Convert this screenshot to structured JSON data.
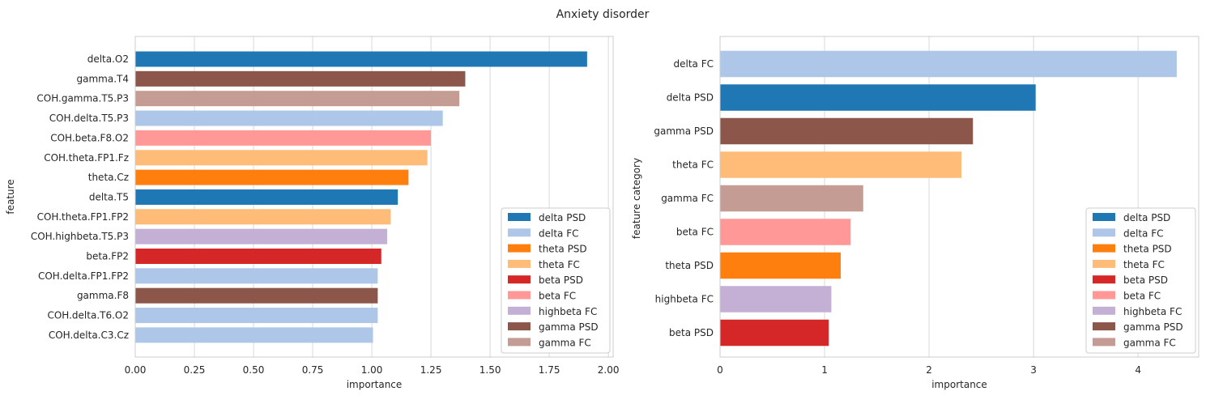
{
  "figure": {
    "title": "Anxiety disorder"
  },
  "chart_data": [
    {
      "type": "bar",
      "orientation": "horizontal",
      "xlabel": "importance",
      "ylabel": "feature",
      "xlim": [
        0,
        2.02
      ],
      "xticks": [
        0.0,
        0.25,
        0.5,
        0.75,
        1.0,
        1.25,
        1.5,
        1.75,
        2.0
      ],
      "xtick_labels": [
        "0.00",
        "0.25",
        "0.50",
        "0.75",
        "1.00",
        "1.25",
        "1.50",
        "1.75",
        "2.00"
      ],
      "grid": true,
      "legend_position": "lower-right",
      "bars": [
        {
          "label": "delta.O2",
          "value": 1.91,
          "category": "delta PSD"
        },
        {
          "label": "gamma.T4",
          "value": 1.395,
          "category": "gamma PSD"
        },
        {
          "label": "COH.gamma.T5.P3",
          "value": 1.37,
          "category": "gamma FC"
        },
        {
          "label": "COH.delta.T5.P3",
          "value": 1.3,
          "category": "delta FC"
        },
        {
          "label": "COH.beta.F8.O2",
          "value": 1.25,
          "category": "beta FC"
        },
        {
          "label": "COH.theta.FP1.Fz",
          "value": 1.235,
          "category": "theta FC"
        },
        {
          "label": "theta.Cz",
          "value": 1.155,
          "category": "theta PSD"
        },
        {
          "label": "delta.T5",
          "value": 1.11,
          "category": "delta PSD"
        },
        {
          "label": "COH.theta.FP1.FP2",
          "value": 1.08,
          "category": "theta FC"
        },
        {
          "label": "COH.highbeta.T5.P3",
          "value": 1.065,
          "category": "highbeta FC"
        },
        {
          "label": "beta.FP2",
          "value": 1.04,
          "category": "beta PSD"
        },
        {
          "label": "COH.delta.FP1.FP2",
          "value": 1.025,
          "category": "delta FC"
        },
        {
          "label": "gamma.F8",
          "value": 1.025,
          "category": "gamma PSD"
        },
        {
          "label": "COH.delta.T6.O2",
          "value": 1.025,
          "category": "delta FC"
        },
        {
          "label": "COH.delta.C3.Cz",
          "value": 1.005,
          "category": "delta FC"
        }
      ]
    },
    {
      "type": "bar",
      "orientation": "horizontal",
      "xlabel": "importance",
      "ylabel": "feature category",
      "xlim": [
        0,
        4.58
      ],
      "xticks": [
        0,
        1,
        2,
        3,
        4
      ],
      "xtick_labels": [
        "0",
        "1",
        "2",
        "3",
        "4"
      ],
      "grid": true,
      "legend_position": "lower-right",
      "bars": [
        {
          "label": "delta FC",
          "value": 4.37,
          "category": "delta FC"
        },
        {
          "label": "delta PSD",
          "value": 3.02,
          "category": "delta PSD"
        },
        {
          "label": "gamma PSD",
          "value": 2.42,
          "category": "gamma PSD"
        },
        {
          "label": "theta FC",
          "value": 2.31,
          "category": "theta FC"
        },
        {
          "label": "gamma FC",
          "value": 1.37,
          "category": "gamma FC"
        },
        {
          "label": "beta FC",
          "value": 1.25,
          "category": "beta FC"
        },
        {
          "label": "theta PSD",
          "value": 1.155,
          "category": "theta PSD"
        },
        {
          "label": "highbeta FC",
          "value": 1.065,
          "category": "highbeta FC"
        },
        {
          "label": "beta PSD",
          "value": 1.04,
          "category": "beta PSD"
        }
      ]
    }
  ],
  "legend": [
    {
      "label": "delta PSD",
      "color": "#1f77b4"
    },
    {
      "label": "delta FC",
      "color": "#aec7e8"
    },
    {
      "label": "theta PSD",
      "color": "#ff7f0e"
    },
    {
      "label": "theta FC",
      "color": "#ffbb78"
    },
    {
      "label": "beta PSD",
      "color": "#d62728"
    },
    {
      "label": "beta FC",
      "color": "#ff9896"
    },
    {
      "label": "highbeta FC",
      "color": "#c5b0d5"
    },
    {
      "label": "gamma PSD",
      "color": "#8c564b"
    },
    {
      "label": "gamma FC",
      "color": "#c49c94"
    }
  ]
}
